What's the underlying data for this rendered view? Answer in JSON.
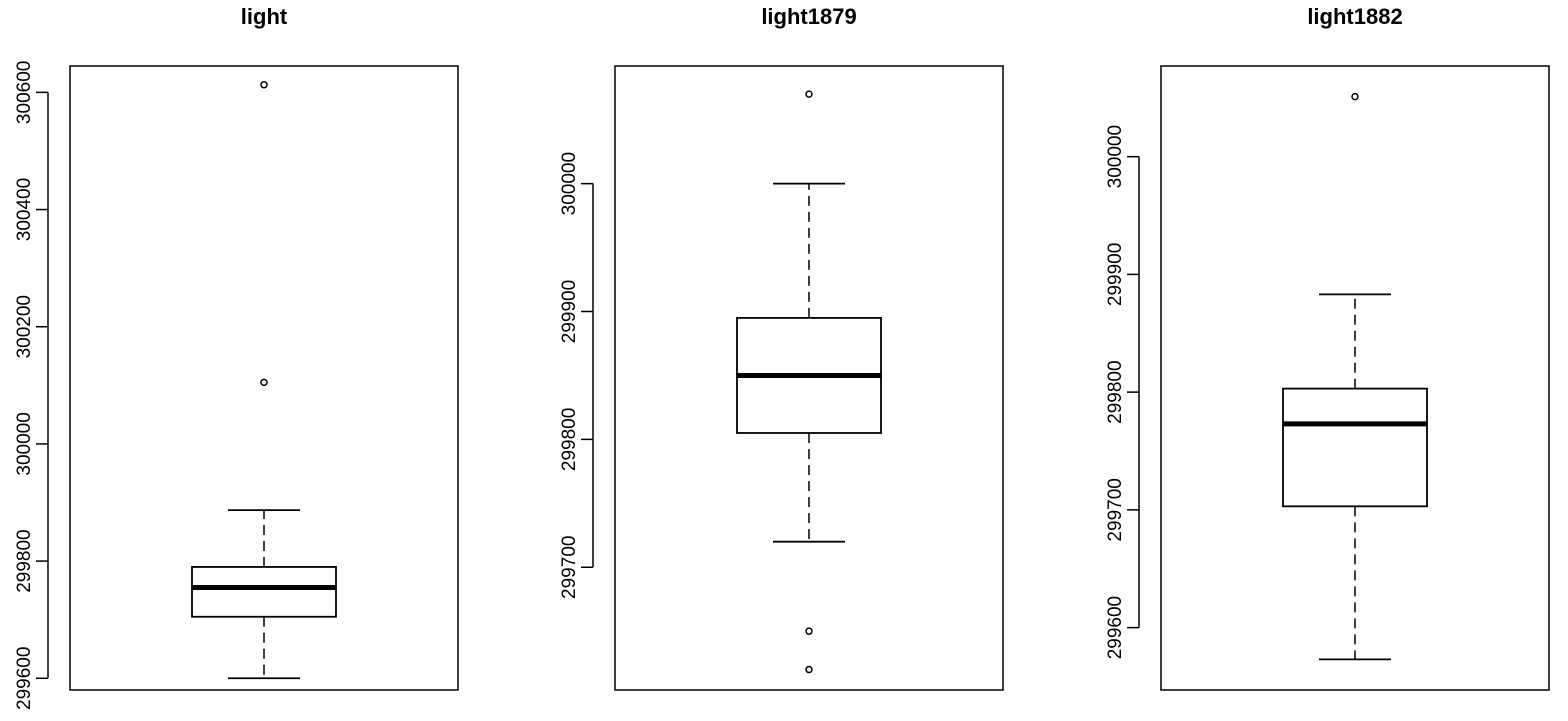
{
  "chart_data": [
    {
      "type": "boxplot",
      "title": "light",
      "ylim": [
        299580,
        300645
      ],
      "yticks": [
        299600,
        299800,
        300000,
        300200,
        300400,
        300600
      ],
      "box": {
        "whisker_low": 299600,
        "q1": 299705,
        "median": 299755,
        "q3": 299790,
        "whisker_high": 299887
      },
      "outliers": [
        300105,
        300613
      ]
    },
    {
      "type": "boxplot",
      "title": "light1879",
      "ylim": [
        299604,
        300092
      ],
      "yticks": [
        299700,
        299800,
        299900,
        300000
      ],
      "box": {
        "whisker_low": 299720,
        "q1": 299805,
        "median": 299850,
        "q3": 299895,
        "whisker_high": 300000
      },
      "outliers": [
        299620,
        299650,
        300070
      ]
    },
    {
      "type": "boxplot",
      "title": "light1882",
      "ylim": [
        299547,
        300077
      ],
      "yticks": [
        299600,
        299700,
        299800,
        299900,
        300000
      ],
      "box": {
        "whisker_low": 299573,
        "q1": 299703,
        "median": 299773,
        "q3": 299803,
        "whisker_high": 299883
      },
      "outliers": [
        300051
      ]
    }
  ]
}
